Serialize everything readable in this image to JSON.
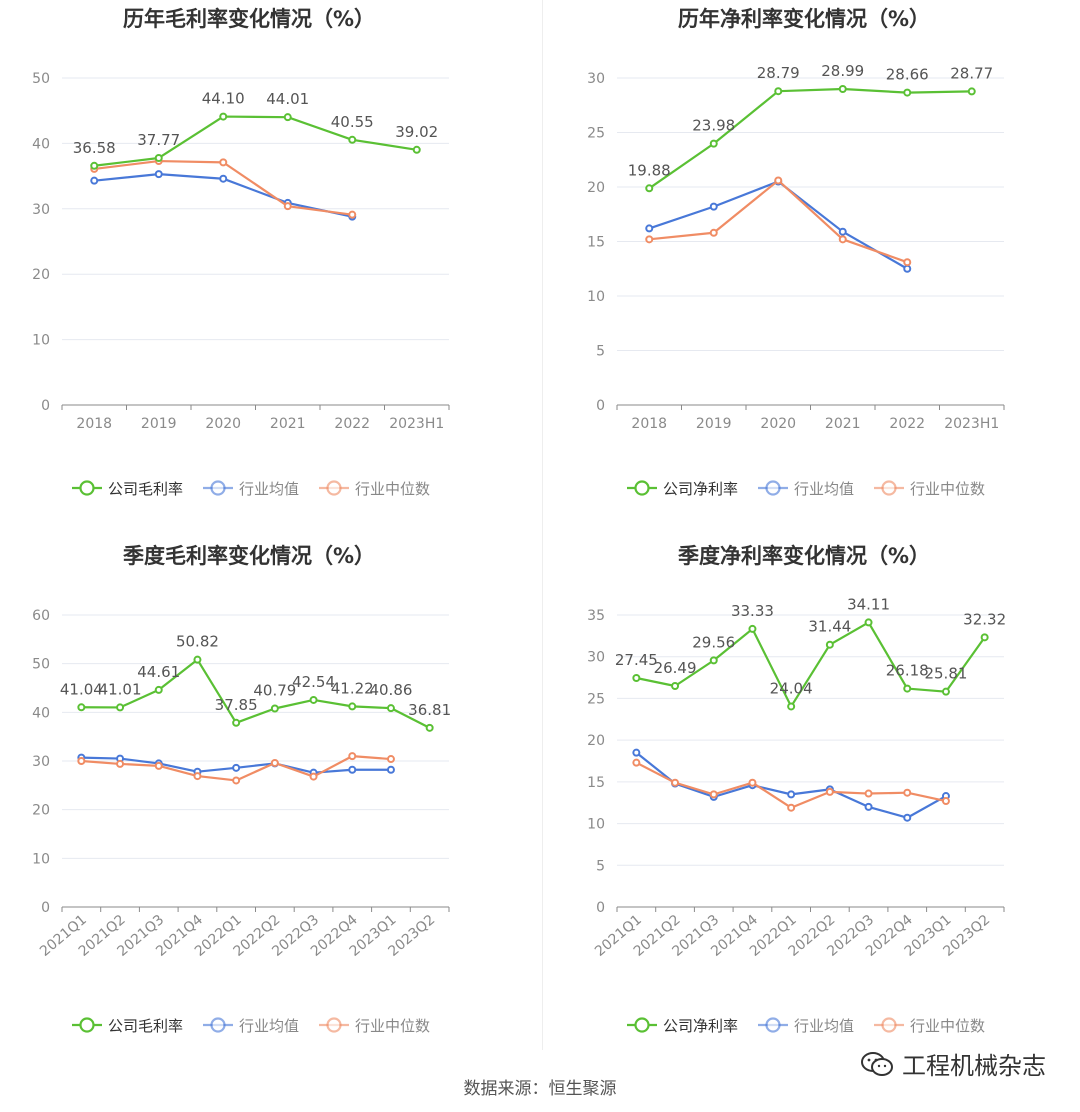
{
  "chart_data": [
    {
      "type": "line",
      "title": "历年毛利率变化情况（%）",
      "categories": [
        "2018",
        "2019",
        "2020",
        "2021",
        "2022",
        "2023H1"
      ],
      "ylim": [
        0,
        50
      ],
      "yticks": [
        0,
        10,
        20,
        30,
        40,
        50
      ],
      "grid": true,
      "legend_position": "bottom",
      "series": [
        {
          "name": "公司毛利率",
          "color": "#5ac034",
          "values": [
            36.58,
            37.77,
            44.1,
            44.01,
            40.55,
            39.02
          ],
          "labels": [
            "36.58",
            "37.77",
            "44.10",
            "44.01",
            "40.55",
            "39.02"
          ]
        },
        {
          "name": "行业均值",
          "color": "#4878d8",
          "values": [
            34.3,
            35.3,
            34.6,
            30.9,
            28.8,
            null
          ]
        },
        {
          "name": "行业中位数",
          "color": "#f08c64",
          "values": [
            36.1,
            37.3,
            37.1,
            30.4,
            29.1,
            null
          ]
        }
      ]
    },
    {
      "type": "line",
      "title": "历年净利率变化情况（%）",
      "categories": [
        "2018",
        "2019",
        "2020",
        "2021",
        "2022",
        "2023H1"
      ],
      "ylim": [
        0,
        30
      ],
      "yticks": [
        0,
        5,
        10,
        15,
        20,
        25,
        30
      ],
      "grid": true,
      "legend_position": "bottom",
      "series": [
        {
          "name": "公司净利率",
          "color": "#5ac034",
          "values": [
            19.88,
            23.98,
            28.79,
            28.99,
            28.66,
            28.77
          ],
          "labels": [
            "19.88",
            "23.98",
            "28.79",
            "28.99",
            "28.66",
            "28.77"
          ]
        },
        {
          "name": "行业均值",
          "color": "#4878d8",
          "values": [
            16.2,
            18.2,
            20.5,
            15.9,
            12.5,
            null
          ]
        },
        {
          "name": "行业中位数",
          "color": "#f08c64",
          "values": [
            15.2,
            15.8,
            20.6,
            15.2,
            13.1,
            null
          ]
        }
      ]
    },
    {
      "type": "line",
      "title": "季度毛利率变化情况（%）",
      "categories": [
        "2021Q1",
        "2021Q2",
        "2021Q3",
        "2021Q4",
        "2022Q1",
        "2022Q2",
        "2022Q3",
        "2022Q4",
        "2023Q1",
        "2023Q2"
      ],
      "ylim": [
        0,
        60
      ],
      "yticks": [
        0,
        10,
        20,
        30,
        40,
        50,
        60
      ],
      "grid": true,
      "legend_position": "bottom",
      "rotated_xlabels": true,
      "series": [
        {
          "name": "公司毛利率",
          "color": "#5ac034",
          "values": [
            41.04,
            41.01,
            44.61,
            50.82,
            37.85,
            40.79,
            42.54,
            41.22,
            40.86,
            36.81
          ],
          "labels": [
            "41.04",
            "41.01",
            "44.61",
            "50.82",
            "37.85",
            "40.79",
            "42.54",
            "41.22",
            "40.86",
            "36.81"
          ]
        },
        {
          "name": "行业均值",
          "color": "#4878d8",
          "values": [
            30.7,
            30.5,
            29.5,
            27.8,
            28.6,
            29.5,
            27.6,
            28.2,
            28.2,
            null
          ]
        },
        {
          "name": "行业中位数",
          "color": "#f08c64",
          "values": [
            30.0,
            29.4,
            29.0,
            26.9,
            26.0,
            29.6,
            26.8,
            31.0,
            30.4,
            null
          ]
        }
      ]
    },
    {
      "type": "line",
      "title": "季度净利率变化情况（%）",
      "categories": [
        "2021Q1",
        "2021Q2",
        "2021Q3",
        "2021Q4",
        "2022Q1",
        "2022Q2",
        "2022Q3",
        "2022Q4",
        "2023Q1",
        "2023Q2"
      ],
      "ylim": [
        0,
        35
      ],
      "yticks": [
        0,
        5,
        10,
        15,
        20,
        25,
        30,
        35
      ],
      "grid": true,
      "legend_position": "bottom",
      "rotated_xlabels": true,
      "series": [
        {
          "name": "公司净利率",
          "color": "#5ac034",
          "values": [
            27.45,
            26.49,
            29.56,
            33.33,
            24.04,
            31.44,
            34.11,
            26.18,
            25.81,
            32.32
          ],
          "labels": [
            "27.45",
            "26.49",
            "29.56",
            "33.33",
            "24.04",
            "31.44",
            "34.11",
            "26.18",
            "25.81",
            "32.32"
          ]
        },
        {
          "name": "行业均值",
          "color": "#4878d8",
          "values": [
            18.5,
            14.8,
            13.2,
            14.6,
            13.5,
            14.1,
            12.0,
            10.7,
            13.3,
            null
          ]
        },
        {
          "name": "行业中位数",
          "color": "#f08c64",
          "values": [
            17.3,
            14.9,
            13.5,
            14.9,
            11.9,
            13.8,
            13.6,
            13.7,
            12.7,
            null
          ]
        }
      ]
    }
  ],
  "footer": {
    "source": "数据来源：恒生聚源",
    "watermark": "工程机械杂志"
  }
}
